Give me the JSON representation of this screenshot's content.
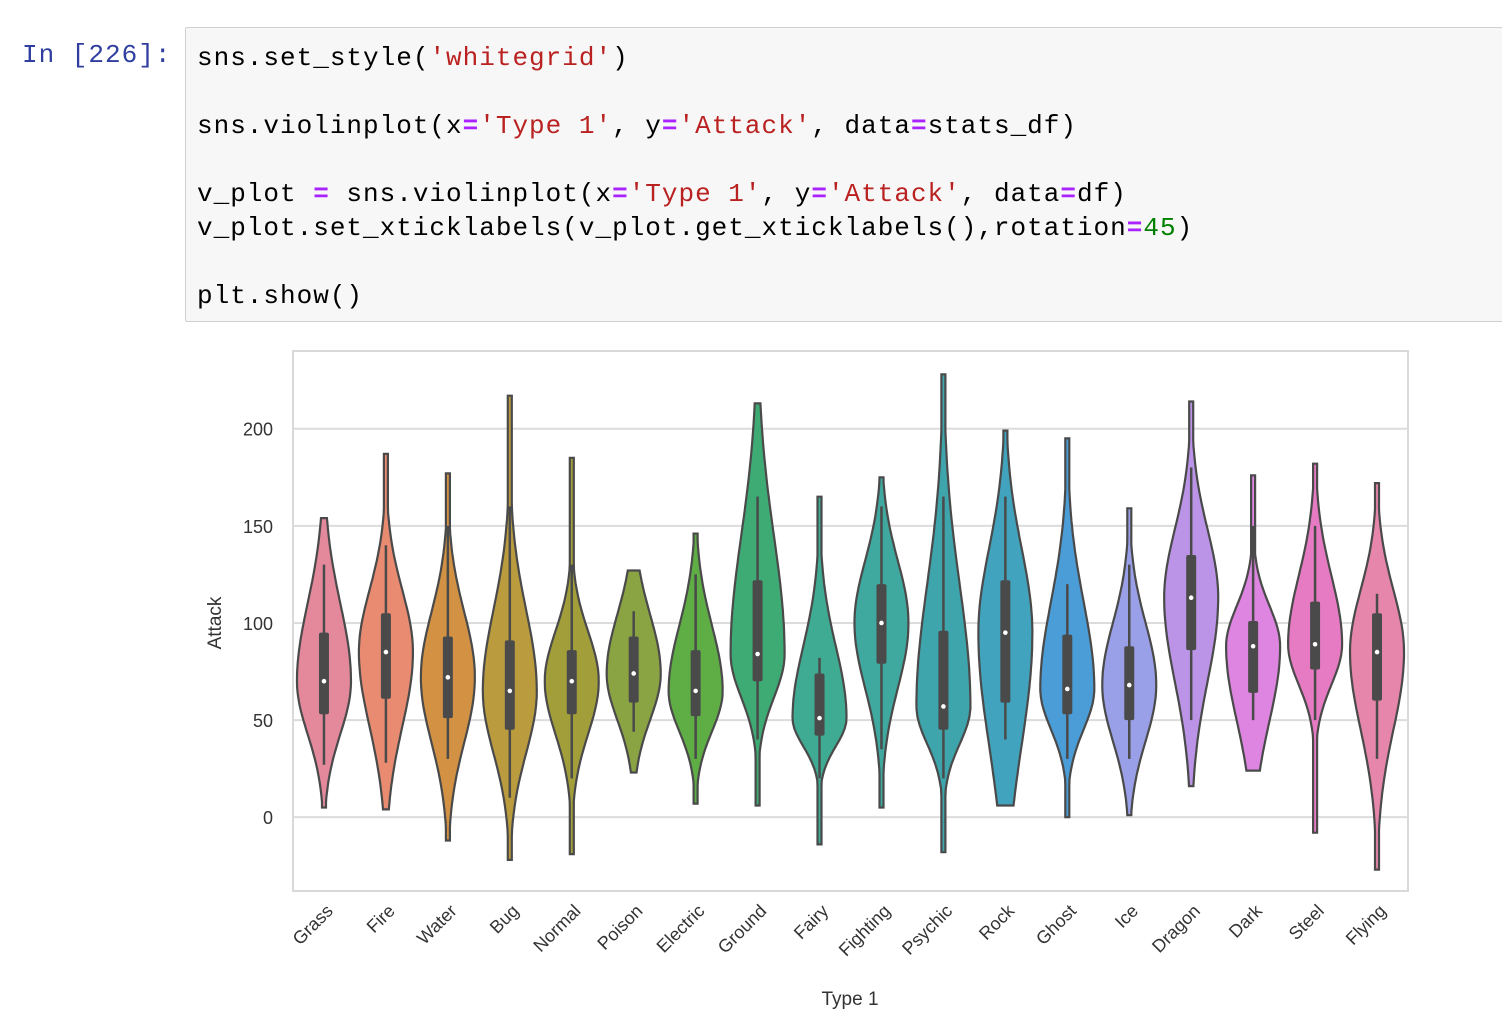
{
  "cell": {
    "prompt": "In [226]:",
    "code_lines": [
      [
        [
          "sns.set_style(",
          ""
        ],
        [
          "'whitegrid'",
          "str"
        ],
        [
          ")",
          ""
        ]
      ],
      [],
      [
        [
          "sns.violinplot(x",
          ""
        ],
        [
          "=",
          "op"
        ],
        [
          "'Type 1'",
          "str"
        ],
        [
          ", y",
          ""
        ],
        [
          "=",
          "op"
        ],
        [
          "'Attack'",
          "str"
        ],
        [
          ", data",
          ""
        ],
        [
          "=",
          "op"
        ],
        [
          "stats_df)",
          ""
        ]
      ],
      [],
      [
        [
          "v_plot ",
          ""
        ],
        [
          "=",
          "op"
        ],
        [
          " sns.violinplot(x",
          ""
        ],
        [
          "=",
          "op"
        ],
        [
          "'Type 1'",
          "str"
        ],
        [
          ", y",
          ""
        ],
        [
          "=",
          "op"
        ],
        [
          "'Attack'",
          "str"
        ],
        [
          ", data",
          ""
        ],
        [
          "=",
          "op"
        ],
        [
          "df)",
          ""
        ]
      ],
      [
        [
          "v_plot.set_xticklabels(v_plot.get_xticklabels(),rotation",
          ""
        ],
        [
          "=",
          "op"
        ],
        [
          "45",
          "num"
        ],
        [
          ")",
          ""
        ]
      ],
      [],
      [
        [
          "plt.show()",
          ""
        ]
      ]
    ]
  },
  "chart_data": {
    "type": "violin",
    "style": "whitegrid",
    "xlabel": "Type 1",
    "ylabel": "Attack",
    "ylim": [
      -38,
      240
    ],
    "yticks": [
      0,
      50,
      100,
      150,
      200
    ],
    "xtick_rotation": 45,
    "grid": true,
    "categories": [
      "Grass",
      "Fire",
      "Water",
      "Bug",
      "Normal",
      "Poison",
      "Electric",
      "Ground",
      "Fairy",
      "Fighting",
      "Psychic",
      "Rock",
      "Ghost",
      "Ice",
      "Dragon",
      "Dark",
      "Steel",
      "Flying"
    ],
    "colors": [
      "#e4899c",
      "#e98b71",
      "#d39243",
      "#ba9c3f",
      "#a29f3b",
      "#8ba443",
      "#5fae45",
      "#3eab75",
      "#3fab93",
      "#3fa99f",
      "#3ea5ac",
      "#41a3bd",
      "#4b9dd8",
      "#9aa0e8",
      "#bb94e8",
      "#dd85e0",
      "#e77bc3",
      "#e786ab"
    ],
    "stats": [
      {
        "min": 5,
        "max": 154,
        "q1": 53,
        "median": 70,
        "q3": 95,
        "whisker_low": 27,
        "whisker_high": 130
      },
      {
        "min": 4,
        "max": 187,
        "q1": 61,
        "median": 85,
        "q3": 105,
        "whisker_low": 28,
        "whisker_high": 140
      },
      {
        "min": -12,
        "max": 177,
        "q1": 51,
        "median": 72,
        "q3": 93,
        "whisker_low": 30,
        "whisker_high": 150
      },
      {
        "min": -22,
        "max": 217,
        "q1": 45,
        "median": 65,
        "q3": 91,
        "whisker_low": 10,
        "whisker_high": 160
      },
      {
        "min": -19,
        "max": 185,
        "q1": 53,
        "median": 70,
        "q3": 86,
        "whisker_low": 20,
        "whisker_high": 130
      },
      {
        "min": 23,
        "max": 127,
        "q1": 59,
        "median": 74,
        "q3": 93,
        "whisker_low": 44,
        "whisker_high": 106
      },
      {
        "min": 7,
        "max": 146,
        "q1": 52,
        "median": 65,
        "q3": 86,
        "whisker_low": 30,
        "whisker_high": 125
      },
      {
        "min": 6,
        "max": 213,
        "q1": 70,
        "median": 84,
        "q3": 122,
        "whisker_low": 40,
        "whisker_high": 165
      },
      {
        "min": -14,
        "max": 165,
        "q1": 42,
        "median": 51,
        "q3": 74,
        "whisker_low": 20,
        "whisker_high": 82
      },
      {
        "min": 5,
        "max": 175,
        "q1": 79,
        "median": 100,
        "q3": 120,
        "whisker_low": 35,
        "whisker_high": 160
      },
      {
        "min": -18,
        "max": 228,
        "q1": 45,
        "median": 57,
        "q3": 96,
        "whisker_low": 20,
        "whisker_high": 165
      },
      {
        "min": 6,
        "max": 199,
        "q1": 59,
        "median": 95,
        "q3": 122,
        "whisker_low": 40,
        "whisker_high": 165
      },
      {
        "min": 0,
        "max": 195,
        "q1": 53,
        "median": 66,
        "q3": 94,
        "whisker_low": 30,
        "whisker_high": 120
      },
      {
        "min": 1,
        "max": 159,
        "q1": 50,
        "median": 68,
        "q3": 88,
        "whisker_low": 30,
        "whisker_high": 130
      },
      {
        "min": 16,
        "max": 214,
        "q1": 86,
        "median": 113,
        "q3": 135,
        "whisker_low": 50,
        "whisker_high": 180
      },
      {
        "min": 24,
        "max": 176,
        "q1": 64,
        "median": 88,
        "q3": 101,
        "whisker_low": 50,
        "whisker_high": 150
      },
      {
        "min": -8,
        "max": 182,
        "q1": 76,
        "median": 89,
        "q3": 111,
        "whisker_low": 50,
        "whisker_high": 150
      },
      {
        "min": -27,
        "max": 172,
        "q1": 60,
        "median": 85,
        "q3": 105,
        "whisker_low": 30,
        "whisker_high": 115
      }
    ]
  }
}
